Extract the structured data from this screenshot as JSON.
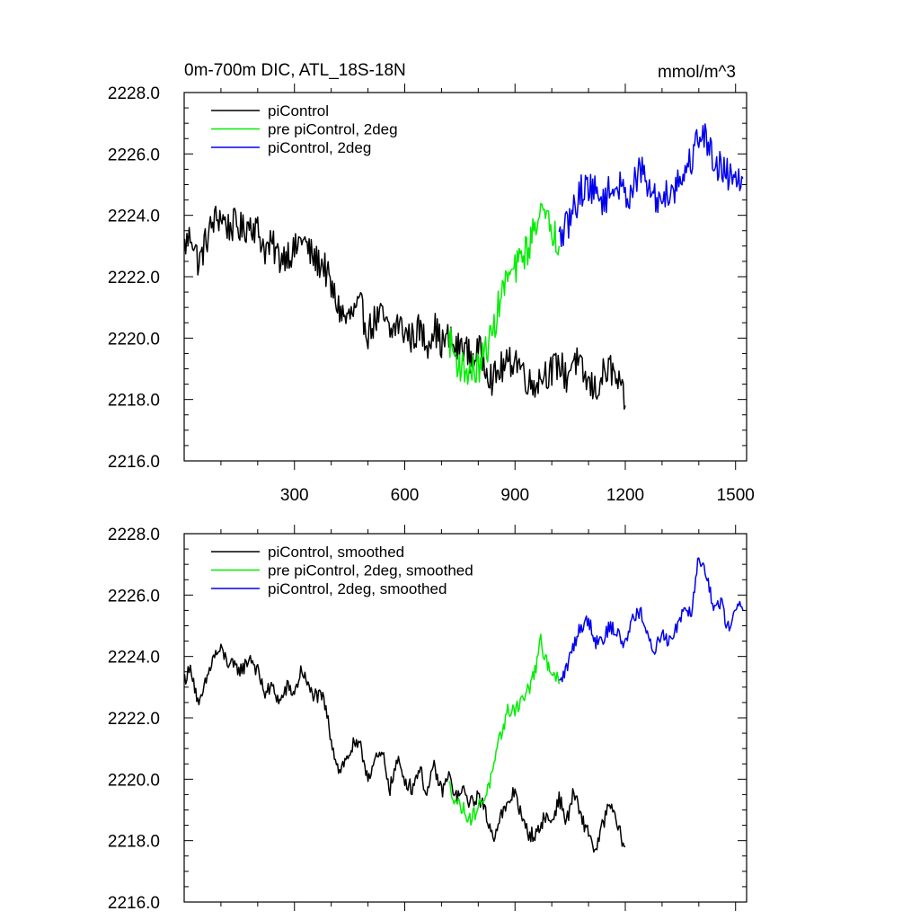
{
  "chart_data": [
    {
      "type": "line",
      "title": "0m-700m DIC, ATL_18S-18N",
      "units_label": "mmol/m^3",
      "xlabel": "",
      "ylabel": "",
      "xlim": [
        0,
        1530
      ],
      "ylim": [
        2216,
        2228
      ],
      "x_ticks": [
        300,
        600,
        900,
        1200,
        1500
      ],
      "x_tick_labels": [
        "300",
        "600",
        "900",
        "1200",
        "1500"
      ],
      "y_ticks": [
        2216,
        2218,
        2220,
        2222,
        2224,
        2226,
        2228
      ],
      "y_tick_labels": [
        "2216.0",
        "2218.0",
        "2220.0",
        "2222.0",
        "2224.0",
        "2226.0",
        "2228.0"
      ],
      "grid": false,
      "legend_position": "top-left",
      "series": [
        {
          "name": "piControl",
          "color": "#000000",
          "noise": 0.55,
          "x": [
            1,
            20,
            40,
            60,
            80,
            100,
            120,
            140,
            160,
            180,
            200,
            220,
            240,
            260,
            280,
            300,
            320,
            340,
            360,
            380,
            400,
            420,
            440,
            460,
            480,
            500,
            520,
            540,
            560,
            580,
            600,
            620,
            640,
            660,
            680,
            700,
            720,
            740,
            760,
            780,
            800,
            820,
            840,
            860,
            880,
            900,
            920,
            940,
            960,
            980,
            1000,
            1020,
            1040,
            1060,
            1080,
            1100,
            1120,
            1140,
            1160,
            1180,
            1200
          ],
          "values": [
            2223.0,
            2223.4,
            2222.4,
            2223.2,
            2223.8,
            2224.0,
            2223.6,
            2223.7,
            2223.5,
            2223.8,
            2223.5,
            2222.9,
            2223.0,
            2222.6,
            2222.8,
            2222.8,
            2223.3,
            2222.8,
            2222.5,
            2222.4,
            2221.6,
            2221.0,
            2220.6,
            2220.8,
            2221.0,
            2220.2,
            2220.6,
            2220.7,
            2220.1,
            2220.5,
            2220.2,
            2220.0,
            2220.3,
            2219.8,
            2220.4,
            2219.8,
            2220.0,
            2219.6,
            2219.8,
            2219.3,
            2219.6,
            2219.2,
            2218.6,
            2219.0,
            2219.1,
            2219.4,
            2219.0,
            2218.5,
            2218.6,
            2218.9,
            2218.9,
            2219.2,
            2218.7,
            2219.4,
            2218.9,
            2218.5,
            2218.3,
            2218.8,
            2219.0,
            2218.5,
            2217.8
          ]
        },
        {
          "name": "pre piControl, 2deg",
          "color": "#00ee00",
          "noise": 0.55,
          "x": [
            720,
            740,
            760,
            780,
            800,
            820,
            840,
            860,
            880,
            900,
            920,
            940,
            960,
            970,
            980,
            1000,
            1020
          ],
          "values": [
            2220.0,
            2219.3,
            2219.0,
            2218.9,
            2219.0,
            2219.6,
            2220.2,
            2221.3,
            2222.0,
            2222.2,
            2222.7,
            2223.0,
            2224.0,
            2224.4,
            2223.8,
            2223.6,
            2223.0
          ]
        },
        {
          "name": "piControl, 2deg",
          "color": "#0000ee",
          "noise": 0.55,
          "x": [
            1020,
            1040,
            1060,
            1080,
            1100,
            1120,
            1140,
            1160,
            1180,
            1200,
            1220,
            1240,
            1260,
            1280,
            1300,
            1320,
            1340,
            1360,
            1380,
            1400,
            1420,
            1440,
            1460,
            1480,
            1500,
            1520
          ],
          "values": [
            2223.2,
            2223.6,
            2224.2,
            2224.8,
            2225.0,
            2224.7,
            2224.5,
            2224.8,
            2225.0,
            2224.6,
            2224.9,
            2225.5,
            2225.0,
            2224.5,
            2224.6,
            2224.8,
            2225.0,
            2225.4,
            2225.8,
            2226.7,
            2226.5,
            2225.8,
            2225.6,
            2225.3,
            2225.5,
            2225.2
          ]
        }
      ]
    },
    {
      "type": "line",
      "title": "",
      "xlabel": "",
      "ylabel": "",
      "xlim": [
        0,
        1530
      ],
      "ylim": [
        2216,
        2228
      ],
      "x_ticks": [
        300,
        600,
        900,
        1200,
        1500
      ],
      "x_tick_labels": [],
      "y_ticks": [
        2216,
        2218,
        2220,
        2222,
        2224,
        2226,
        2228
      ],
      "y_tick_labels": [
        "2216.0",
        "2218.0",
        "2220.0",
        "2222.0",
        "2224.0",
        "2226.0",
        "2228.0"
      ],
      "grid": false,
      "legend_position": "top-left",
      "series": [
        {
          "name": "piControl, smoothed",
          "color": "#000000",
          "noise": 0.25,
          "x": [
            1,
            20,
            40,
            60,
            80,
            100,
            120,
            140,
            160,
            180,
            200,
            220,
            240,
            260,
            280,
            300,
            320,
            340,
            360,
            380,
            400,
            420,
            440,
            460,
            480,
            500,
            520,
            540,
            560,
            580,
            600,
            620,
            640,
            660,
            680,
            700,
            720,
            740,
            760,
            780,
            800,
            820,
            840,
            860,
            880,
            900,
            920,
            940,
            960,
            980,
            1000,
            1020,
            1040,
            1060,
            1080,
            1100,
            1120,
            1140,
            1160,
            1180,
            1200
          ],
          "values": [
            2223.3,
            2223.6,
            2222.3,
            2223.2,
            2224.0,
            2224.2,
            2223.8,
            2223.6,
            2223.6,
            2224.0,
            2223.5,
            2222.8,
            2223.0,
            2222.5,
            2223.0,
            2222.8,
            2223.6,
            2222.9,
            2222.7,
            2222.6,
            2221.3,
            2220.3,
            2220.6,
            2221.1,
            2221.0,
            2220.1,
            2220.6,
            2220.8,
            2219.7,
            2220.6,
            2220.0,
            2219.7,
            2220.4,
            2219.5,
            2220.4,
            2219.6,
            2220.1,
            2219.4,
            2219.6,
            2219.2,
            2219.5,
            2218.9,
            2218.1,
            2218.8,
            2219.1,
            2219.7,
            2218.6,
            2218.2,
            2218.2,
            2218.8,
            2218.6,
            2219.4,
            2218.6,
            2219.6,
            2218.7,
            2218.3,
            2217.6,
            2218.6,
            2219.2,
            2218.4,
            2217.8
          ]
        },
        {
          "name": "pre piControl, 2deg, smoothed",
          "color": "#00ee00",
          "noise": 0.25,
          "x": [
            720,
            740,
            760,
            780,
            800,
            820,
            840,
            860,
            880,
            900,
            920,
            940,
            960,
            970,
            980,
            1000,
            1020
          ],
          "values": [
            2219.8,
            2219.3,
            2219.0,
            2218.7,
            2219.1,
            2219.5,
            2220.2,
            2221.4,
            2222.2,
            2222.3,
            2222.6,
            2223.0,
            2223.8,
            2224.5,
            2223.9,
            2223.6,
            2223.1
          ]
        },
        {
          "name": "piControl, 2deg, smoothed",
          "color": "#0000ee",
          "noise": 0.25,
          "x": [
            1020,
            1040,
            1060,
            1080,
            1100,
            1120,
            1140,
            1160,
            1180,
            1200,
            1220,
            1240,
            1260,
            1280,
            1300,
            1320,
            1340,
            1360,
            1380,
            1400,
            1420,
            1440,
            1460,
            1480,
            1500,
            1520
          ],
          "values": [
            2223.1,
            2223.6,
            2224.4,
            2225.0,
            2225.2,
            2224.5,
            2224.6,
            2225.0,
            2224.7,
            2224.4,
            2225.3,
            2225.5,
            2224.6,
            2224.2,
            2224.8,
            2224.5,
            2225.0,
            2225.6,
            2225.5,
            2227.3,
            2226.8,
            2225.5,
            2225.8,
            2224.9,
            2225.7,
            2225.5
          ]
        }
      ]
    }
  ]
}
